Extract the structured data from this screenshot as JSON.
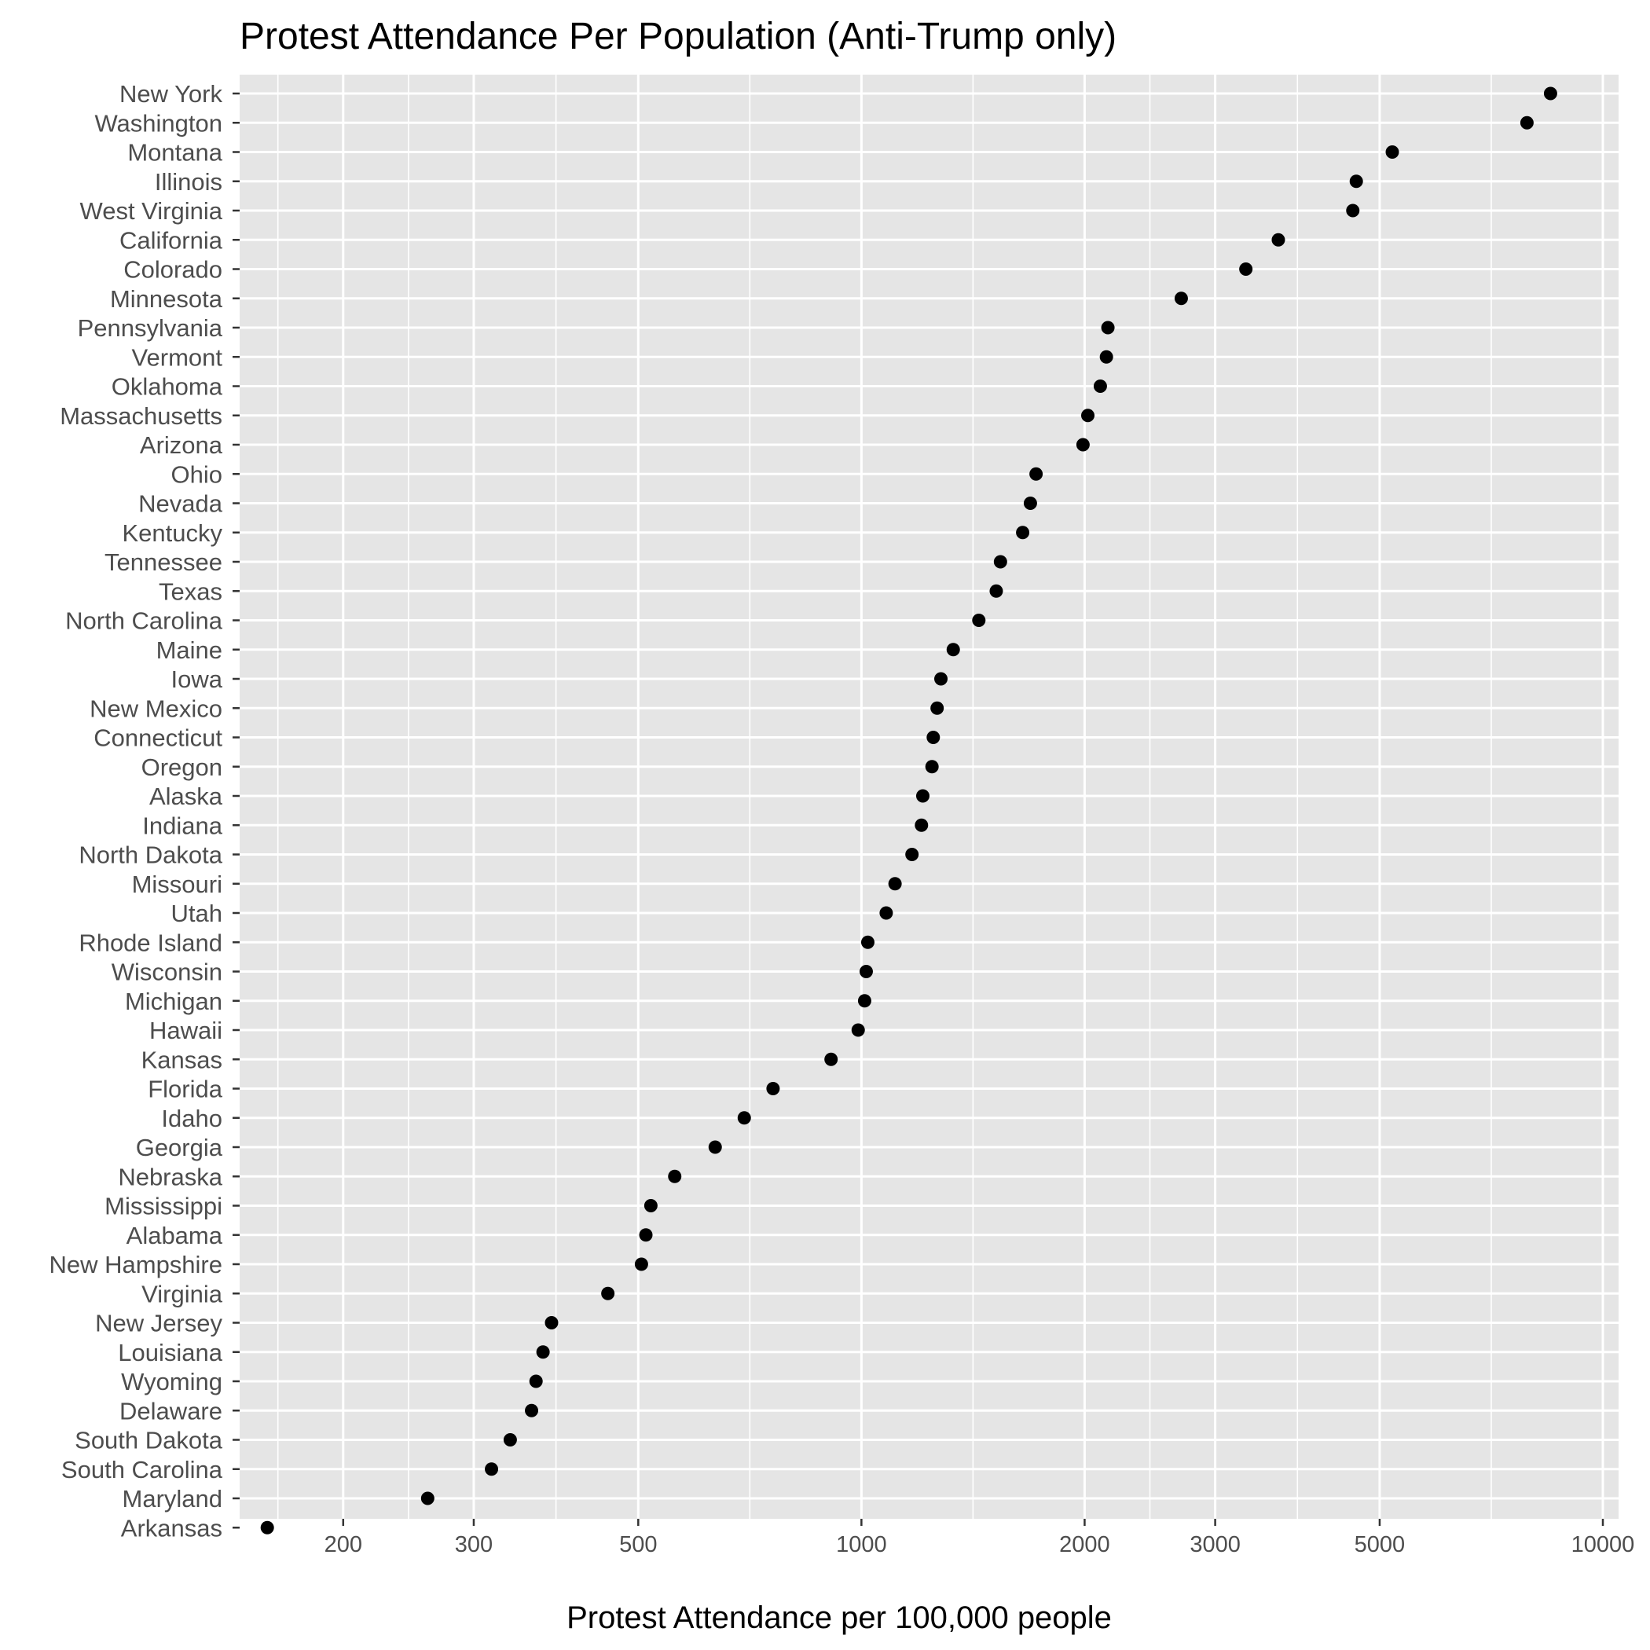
{
  "chart_data": {
    "type": "scatter",
    "title": "Protest Attendance Per Population (Anti-Trump only)",
    "xlabel": "Protest Attendance per 100,000 people",
    "ylabel": "",
    "x_scale": "log10",
    "xlim": [
      145,
      10500
    ],
    "x_ticks": [
      200,
      300,
      500,
      1000,
      2000,
      3000,
      5000,
      10000
    ],
    "x_tick_labels": [
      "200",
      "300",
      "500",
      "1000",
      "2000",
      "3000",
      "5000",
      "10000"
    ],
    "grid": true,
    "legend": "none",
    "colors": {
      "panel": "#e5e5e5",
      "grid": "#ffffff",
      "point": "#000000",
      "tick_text": "#4d4d4d"
    },
    "points": [
      {
        "state": "New York",
        "value": 8500
      },
      {
        "state": "Washington",
        "value": 7900
      },
      {
        "state": "Montana",
        "value": 5200
      },
      {
        "state": "Illinois",
        "value": 4650
      },
      {
        "state": "West Virginia",
        "value": 4600
      },
      {
        "state": "California",
        "value": 3650
      },
      {
        "state": "Colorado",
        "value": 3300
      },
      {
        "state": "Minnesota",
        "value": 2700
      },
      {
        "state": "Pennsylvania",
        "value": 2150
      },
      {
        "state": "Vermont",
        "value": 2140
      },
      {
        "state": "Oklahoma",
        "value": 2100
      },
      {
        "state": "Massachusetts",
        "value": 2020
      },
      {
        "state": "Arizona",
        "value": 1990
      },
      {
        "state": "Ohio",
        "value": 1720
      },
      {
        "state": "Nevada",
        "value": 1690
      },
      {
        "state": "Kentucky",
        "value": 1650
      },
      {
        "state": "Tennessee",
        "value": 1540
      },
      {
        "state": "Texas",
        "value": 1520
      },
      {
        "state": "North Carolina",
        "value": 1440
      },
      {
        "state": "Maine",
        "value": 1330
      },
      {
        "state": "Iowa",
        "value": 1280
      },
      {
        "state": "New Mexico",
        "value": 1265
      },
      {
        "state": "Connecticut",
        "value": 1250
      },
      {
        "state": "Oregon",
        "value": 1245
      },
      {
        "state": "Alaska",
        "value": 1210
      },
      {
        "state": "Indiana",
        "value": 1205
      },
      {
        "state": "North Dakota",
        "value": 1170
      },
      {
        "state": "Missouri",
        "value": 1110
      },
      {
        "state": "Utah",
        "value": 1080
      },
      {
        "state": "Rhode Island",
        "value": 1020
      },
      {
        "state": "Wisconsin",
        "value": 1015
      },
      {
        "state": "Michigan",
        "value": 1010
      },
      {
        "state": "Hawaii",
        "value": 990
      },
      {
        "state": "Kansas",
        "value": 910
      },
      {
        "state": "Florida",
        "value": 760
      },
      {
        "state": "Idaho",
        "value": 695
      },
      {
        "state": "Georgia",
        "value": 635
      },
      {
        "state": "Nebraska",
        "value": 560
      },
      {
        "state": "Mississippi",
        "value": 520
      },
      {
        "state": "Alabama",
        "value": 512
      },
      {
        "state": "New Hampshire",
        "value": 505
      },
      {
        "state": "Virginia",
        "value": 455
      },
      {
        "state": "New Jersey",
        "value": 382
      },
      {
        "state": "Louisiana",
        "value": 372
      },
      {
        "state": "Wyoming",
        "value": 364
      },
      {
        "state": "Delaware",
        "value": 359
      },
      {
        "state": "South Dakota",
        "value": 336
      },
      {
        "state": "South Carolina",
        "value": 317
      },
      {
        "state": "Maryland",
        "value": 260
      },
      {
        "state": "Arkansas",
        "value": 158
      }
    ]
  }
}
